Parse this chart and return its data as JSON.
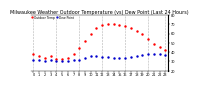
{
  "title": "Milwaukee Weather Outdoor Temperature (vs) Dew Point (Last 24 Hours)",
  "title_fontsize": 3.5,
  "background_color": "#ffffff",
  "temp_color": "#ff0000",
  "dew_color": "#0000cc",
  "grid_color": "#aaaaaa",
  "legend_temp": "Outdoor Temp",
  "legend_dew": "Dew Point",
  "hours": [
    0,
    1,
    2,
    3,
    4,
    5,
    6,
    7,
    8,
    9,
    10,
    11,
    12,
    13,
    14,
    15,
    16,
    17,
    18,
    19,
    20,
    21,
    22,
    23
  ],
  "temp_values": [
    38,
    36,
    34,
    36,
    33,
    33,
    34,
    38,
    44,
    52,
    60,
    66,
    69,
    70,
    70,
    69,
    68,
    66,
    63,
    59,
    54,
    49,
    45,
    42
  ],
  "dew_values": [
    32,
    31,
    30,
    31,
    30,
    30,
    30,
    31,
    32,
    34,
    36,
    36,
    35,
    35,
    34,
    34,
    34,
    35,
    36,
    37,
    38,
    38,
    38,
    37
  ],
  "ylim": [
    20,
    80
  ],
  "yticks": [
    20,
    30,
    40,
    50,
    60,
    70,
    80
  ],
  "tick_fontsize": 2.5,
  "markersize": 1.5,
  "linewidth": 0.6,
  "grid_positions": [
    0,
    4,
    8,
    12,
    16,
    20,
    23
  ]
}
